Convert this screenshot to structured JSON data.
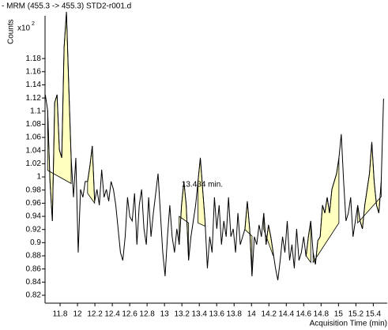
{
  "chart_data": {
    "type": "line",
    "title": "- MRM (455.3 -> 455.3) STD2-r001.d",
    "y_label": "Counts",
    "y_multiplier": "x10",
    "y_multiplier_exp": "2",
    "x_label": "Acquisition Time (min)",
    "annotation": {
      "text": "13.434 min.",
      "x": 13.434
    },
    "color": "#000000",
    "peak_color": "#ffffc0",
    "x": [
      11.63,
      11.657,
      11.684,
      11.711,
      11.738,
      11.765,
      11.792,
      11.819,
      11.846,
      11.873,
      11.9,
      11.927,
      11.954,
      11.981,
      12.008,
      12.035,
      12.062,
      12.089,
      12.116,
      12.143,
      12.17,
      12.197,
      12.224,
      12.251,
      12.278,
      12.305,
      12.332,
      12.359,
      12.386,
      12.413,
      12.44,
      12.467,
      12.494,
      12.521,
      12.548,
      12.575,
      12.602,
      12.629,
      12.656,
      12.683,
      12.71,
      12.737,
      12.764,
      12.791,
      12.818,
      12.845,
      12.872,
      12.899,
      12.926,
      12.953,
      12.98,
      13.007,
      13.034,
      13.061,
      13.088,
      13.115,
      13.142,
      13.169,
      13.196,
      13.223,
      13.25,
      13.277,
      13.304,
      13.331,
      13.358,
      13.385,
      13.412,
      13.439,
      13.466,
      13.493,
      13.52,
      13.547,
      13.574,
      13.601,
      13.628,
      13.655,
      13.682,
      13.709,
      13.736,
      13.763,
      13.79,
      13.817,
      13.844,
      13.871,
      13.898,
      13.925,
      13.952,
      13.979,
      14.006,
      14.033,
      14.06,
      14.087,
      14.114,
      14.141,
      14.168,
      14.195,
      14.222,
      14.249,
      14.276,
      14.303,
      14.33,
      14.357,
      14.384,
      14.411,
      14.438,
      14.465,
      14.492,
      14.519,
      14.546,
      14.573,
      14.6,
      14.627,
      14.654,
      14.681,
      14.708,
      14.735,
      14.762,
      14.789,
      14.816,
      14.843,
      14.87,
      14.897,
      14.924,
      14.951,
      14.978,
      15.005,
      15.032,
      15.059,
      15.086,
      15.113,
      15.14,
      15.167,
      15.194,
      15.221,
      15.248,
      15.275,
      15.302,
      15.329,
      15.356,
      15.383,
      15.41,
      15.437,
      15.464,
      15.491,
      15.518
    ],
    "values": [
      1.125,
      1.101,
      0.993,
      0.933,
      1.113,
      1.125,
      1.041,
      1.029,
      1.197,
      1.251,
      1.137,
      1.029,
      0.969,
      1.029,
      0.885,
      0.981,
      0.969,
      0.993,
      0.993,
      1.017,
      1.047,
      0.963,
      0.981,
      0.957,
      1.011,
      0.969,
      0.981,
      0.963,
      0.993,
      0.981,
      0.957,
      0.921,
      0.885,
      0.873,
      0.909,
      0.969,
      0.939,
      0.933,
      0.975,
      0.897,
      0.957,
      0.981,
      0.921,
      0.897,
      0.969,
      0.909,
      0.945,
      0.975,
      1.005,
      0.945,
      0.885,
      0.849,
      0.909,
      0.957,
      0.909,
      0.885,
      0.921,
      0.897,
      0.957,
      0.993,
      0.957,
      0.873,
      0.909,
      0.933,
      0.957,
      0.993,
      1.029,
      0.981,
      0.933,
      0.861,
      0.909,
      0.885,
      0.969,
      0.921,
      0.957,
      0.897,
      0.933,
      0.909,
      0.969,
      0.909,
      0.921,
      0.885,
      0.945,
      0.897,
      0.909,
      0.921,
      0.963,
      0.921,
      0.849,
      0.909,
      0.897,
      0.927,
      0.909,
      0.945,
      0.897,
      0.927,
      0.909,
      0.885,
      0.861,
      0.843,
      0.873,
      0.909,
      0.885,
      0.933,
      0.873,
      0.897,
      0.861,
      0.921,
      0.873,
      0.885,
      0.909,
      0.879,
      0.909,
      0.933,
      0.885,
      0.867,
      0.903,
      0.909,
      0.957,
      0.945,
      0.969,
      0.945,
      0.981,
      0.993,
      1.005,
      1.029,
      1.065,
      0.993,
      0.933,
      0.945,
      0.969,
      0.909,
      0.933,
      0.957,
      0.933,
      0.921,
      0.957,
      0.981,
      1.005,
      1.053,
      0.993,
      0.957,
      0.945,
      0.993,
      1.119
    ],
    "peaks": [
      {
        "x": [
          11.657,
          11.927
        ],
        "baseline": [
          1.01,
          0.99
        ]
      },
      {
        "x": [
          12.116,
          12.197
        ],
        "baseline": [
          0.975,
          0.96
        ]
      },
      {
        "x": [
          13.169,
          13.277
        ],
        "baseline": [
          0.94,
          0.93
        ]
      },
      {
        "x": [
          13.385,
          13.466
        ],
        "baseline": [
          0.93,
          0.925
        ]
      },
      {
        "x": [
          13.925,
          14.006
        ],
        "baseline": [
          0.92,
          0.91
        ]
      },
      {
        "x": [
          14.141,
          14.249
        ],
        "baseline": [
          0.92,
          0.88
        ]
      },
      {
        "x": [
          14.627,
          14.681
        ],
        "baseline": [
          0.88,
          0.87
        ]
      },
      {
        "x": [
          14.708,
          15.005
        ],
        "baseline": [
          0.87,
          0.93
        ]
      },
      {
        "x": [
          15.221,
          15.491
        ],
        "baseline": [
          0.93,
          0.97
        ]
      }
    ],
    "xlim": [
      11.627,
      15.56
    ],
    "ylim": [
      0.808,
      1.251
    ],
    "xticks": [
      11.8,
      12,
      12.2,
      12.4,
      12.6,
      12.8,
      13,
      13.2,
      13.4,
      13.6,
      13.8,
      14,
      14.2,
      14.4,
      14.6,
      14.8,
      15,
      15.2,
      15.4
    ],
    "yticks": [
      0.82,
      0.84,
      0.86,
      0.88,
      0.9,
      0.92,
      0.94,
      0.96,
      0.98,
      1,
      1.02,
      1.04,
      1.06,
      1.08,
      1.1,
      1.12,
      1.14,
      1.16,
      1.18
    ],
    "grid": false
  }
}
